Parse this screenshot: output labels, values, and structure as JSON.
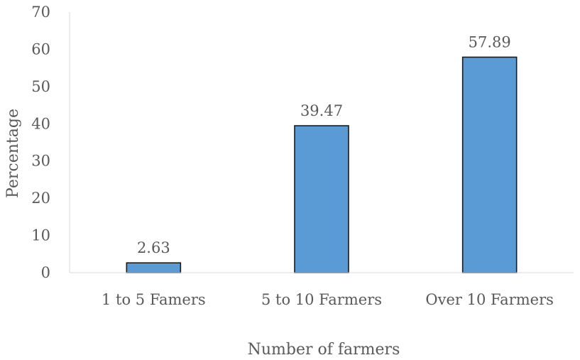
{
  "chart_data": {
    "type": "bar",
    "categories": [
      "1 to 5 Famers",
      "5 to 10 Farmers",
      "Over 10 Farmers"
    ],
    "values": [
      2.63,
      39.47,
      57.89
    ],
    "data_labels": [
      "2.63",
      "39.47",
      "57.89"
    ],
    "title": "",
    "xlabel": "Number of farmers",
    "ylabel": "Percentage",
    "ylim": [
      0,
      70
    ],
    "yticks": [
      0,
      10,
      20,
      30,
      40,
      50,
      60,
      70
    ],
    "grid": false,
    "legend": "none",
    "bar_color": "#5B9BD5",
    "bar_edge_color": "#1a1a1a",
    "axis_color": "#595959"
  }
}
